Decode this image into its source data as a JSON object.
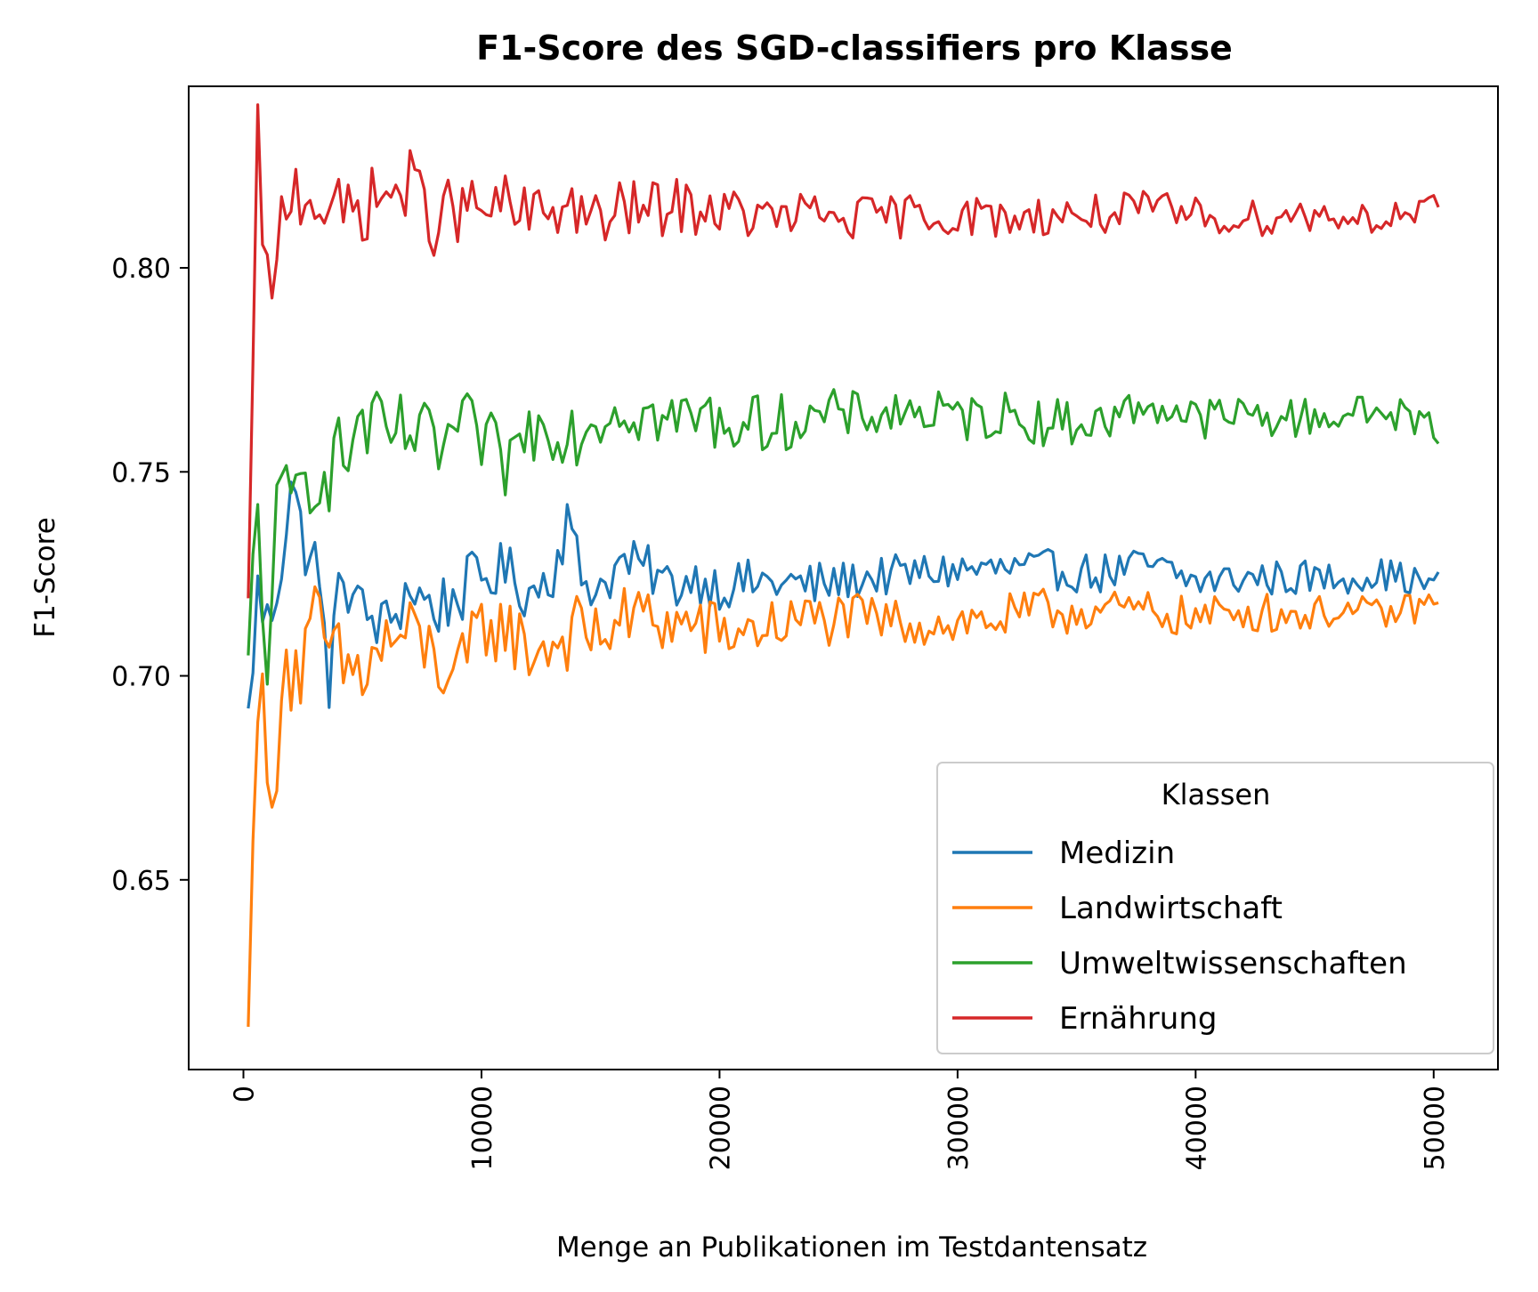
{
  "chart_data": {
    "type": "line",
    "title": "F1-Score des SGD-classifiers pro Klasse",
    "xlabel": "Menge an Publikationen im Testdantensatz",
    "ylabel": "F1-Score",
    "xlim": [
      -2300,
      52700
    ],
    "ylim": [
      0.6035,
      0.8445
    ],
    "x_ticks": [
      0,
      10000,
      20000,
      30000,
      40000,
      50000
    ],
    "x_tick_labels": [
      "0",
      "10000",
      "20000",
      "30000",
      "40000",
      "50000"
    ],
    "y_ticks": [
      0.65,
      0.7,
      0.75,
      0.8
    ],
    "y_tick_labels": [
      "0.65",
      "0.70",
      "0.75",
      "0.80"
    ],
    "grid": false,
    "legend": {
      "title": "Klassen",
      "location": "lower-right"
    },
    "x_start": 200,
    "x_step": 200,
    "series": [
      {
        "name": "Medizin",
        "color": "#1f77b4",
        "keypoints": [
          [
            200,
            0.692
          ],
          [
            600,
            0.72
          ],
          [
            1000,
            0.712
          ],
          [
            1500,
            0.725
          ],
          [
            2000,
            0.748
          ],
          [
            2400,
            0.735
          ],
          [
            3000,
            0.728
          ],
          [
            3600,
            0.7
          ],
          [
            4200,
            0.726
          ],
          [
            5000,
            0.715
          ],
          [
            6000,
            0.712
          ],
          [
            7000,
            0.722
          ],
          [
            8000,
            0.716
          ],
          [
            9000,
            0.72
          ],
          [
            10000,
            0.724
          ],
          [
            11000,
            0.726
          ],
          [
            12000,
            0.72
          ],
          [
            13000,
            0.726
          ],
          [
            13600,
            0.738
          ],
          [
            14200,
            0.724
          ],
          [
            15000,
            0.722
          ],
          [
            16000,
            0.728
          ],
          [
            17000,
            0.726
          ],
          [
            18000,
            0.722
          ],
          [
            19000,
            0.724
          ],
          [
            20000,
            0.722
          ],
          [
            22000,
            0.723
          ],
          [
            24000,
            0.722
          ],
          [
            26000,
            0.724
          ],
          [
            28000,
            0.725
          ],
          [
            30000,
            0.726
          ],
          [
            32000,
            0.726
          ],
          [
            34000,
            0.726
          ],
          [
            36000,
            0.725
          ],
          [
            38000,
            0.727
          ],
          [
            40000,
            0.723
          ],
          [
            42000,
            0.724
          ],
          [
            44000,
            0.724
          ],
          [
            46000,
            0.724
          ],
          [
            48000,
            0.725
          ],
          [
            50000,
            0.722
          ]
        ],
        "noise": [
          0.009,
          0.008,
          0.007,
          0.006,
          0.006,
          0.005,
          0.005,
          0.005,
          0.0045,
          0.004
        ]
      },
      {
        "name": "Landwirtschaft",
        "color": "#ff7f0e",
        "keypoints": [
          [
            200,
            0.614
          ],
          [
            500,
            0.7
          ],
          [
            800,
            0.69
          ],
          [
            1200,
            0.66
          ],
          [
            1600,
            0.705
          ],
          [
            2400,
            0.7
          ],
          [
            3000,
            0.712
          ],
          [
            4000,
            0.702
          ],
          [
            5000,
            0.7
          ],
          [
            6000,
            0.708
          ],
          [
            7000,
            0.71
          ],
          [
            8000,
            0.705
          ],
          [
            9000,
            0.698
          ],
          [
            10000,
            0.712
          ],
          [
            11000,
            0.712
          ],
          [
            12000,
            0.706
          ],
          [
            13000,
            0.708
          ],
          [
            14000,
            0.711
          ],
          [
            15000,
            0.71
          ],
          [
            16000,
            0.714
          ],
          [
            17000,
            0.715
          ],
          [
            18000,
            0.712
          ],
          [
            19000,
            0.713
          ],
          [
            20000,
            0.71
          ],
          [
            22000,
            0.712
          ],
          [
            24000,
            0.714
          ],
          [
            26000,
            0.714
          ],
          [
            28000,
            0.713
          ],
          [
            30000,
            0.713
          ],
          [
            32000,
            0.714
          ],
          [
            34000,
            0.716
          ],
          [
            36000,
            0.716
          ],
          [
            38000,
            0.716
          ],
          [
            40000,
            0.714
          ],
          [
            42000,
            0.716
          ],
          [
            44000,
            0.715
          ],
          [
            46000,
            0.716
          ],
          [
            48000,
            0.715
          ],
          [
            50000,
            0.718
          ]
        ],
        "noise": [
          0.012,
          0.01,
          0.009,
          0.008,
          0.007,
          0.006,
          0.006,
          0.005,
          0.005,
          0.004
        ]
      },
      {
        "name": "Umweltwissenschaften",
        "color": "#2ca02c",
        "keypoints": [
          [
            200,
            0.705
          ],
          [
            600,
            0.74
          ],
          [
            900,
            0.7
          ],
          [
            1400,
            0.738
          ],
          [
            2000,
            0.742
          ],
          [
            3000,
            0.752
          ],
          [
            4000,
            0.752
          ],
          [
            5000,
            0.762
          ],
          [
            6000,
            0.758
          ],
          [
            7000,
            0.76
          ],
          [
            8000,
            0.755
          ],
          [
            9000,
            0.76
          ],
          [
            10000,
            0.758
          ],
          [
            11000,
            0.752
          ],
          [
            12000,
            0.76
          ],
          [
            13000,
            0.762
          ],
          [
            14000,
            0.76
          ],
          [
            15000,
            0.764
          ],
          [
            16000,
            0.766
          ],
          [
            17000,
            0.764
          ],
          [
            18000,
            0.762
          ],
          [
            19000,
            0.764
          ],
          [
            20000,
            0.762
          ],
          [
            22000,
            0.762
          ],
          [
            24000,
            0.763
          ],
          [
            26000,
            0.764
          ],
          [
            28000,
            0.765
          ],
          [
            30000,
            0.763
          ],
          [
            32000,
            0.764
          ],
          [
            34000,
            0.762
          ],
          [
            36000,
            0.762
          ],
          [
            38000,
            0.767
          ],
          [
            40000,
            0.763
          ],
          [
            42000,
            0.764
          ],
          [
            44000,
            0.763
          ],
          [
            46000,
            0.764
          ],
          [
            48000,
            0.765
          ],
          [
            50000,
            0.761
          ]
        ],
        "noise": [
          0.012,
          0.01,
          0.009,
          0.008,
          0.007,
          0.006,
          0.006,
          0.005,
          0.005,
          0.0045
        ]
      },
      {
        "name": "Ernährung",
        "color": "#d62728",
        "keypoints": [
          [
            200,
            0.719
          ],
          [
            600,
            0.83
          ],
          [
            900,
            0.805
          ],
          [
            1200,
            0.785
          ],
          [
            1600,
            0.812
          ],
          [
            2000,
            0.82
          ],
          [
            3000,
            0.818
          ],
          [
            4000,
            0.812
          ],
          [
            5000,
            0.815
          ],
          [
            6000,
            0.818
          ],
          [
            7000,
            0.82
          ],
          [
            8000,
            0.812
          ],
          [
            9000,
            0.814
          ],
          [
            10000,
            0.814
          ],
          [
            11000,
            0.815
          ],
          [
            12000,
            0.812
          ],
          [
            13000,
            0.815
          ],
          [
            14000,
            0.815
          ],
          [
            15000,
            0.81
          ],
          [
            16000,
            0.815
          ],
          [
            17000,
            0.814
          ],
          [
            18000,
            0.815
          ],
          [
            19000,
            0.815
          ],
          [
            20000,
            0.814
          ],
          [
            22000,
            0.812
          ],
          [
            24000,
            0.813
          ],
          [
            26000,
            0.812
          ],
          [
            28000,
            0.813
          ],
          [
            30000,
            0.813
          ],
          [
            32000,
            0.812
          ],
          [
            34000,
            0.813
          ],
          [
            36000,
            0.813
          ],
          [
            38000,
            0.814
          ],
          [
            40000,
            0.813
          ],
          [
            42000,
            0.812
          ],
          [
            44000,
            0.813
          ],
          [
            46000,
            0.813
          ],
          [
            48000,
            0.812
          ],
          [
            50000,
            0.814
          ]
        ],
        "noise": [
          0.01,
          0.009,
          0.008,
          0.007,
          0.006,
          0.0055,
          0.005,
          0.005,
          0.0045,
          0.004
        ]
      }
    ]
  }
}
